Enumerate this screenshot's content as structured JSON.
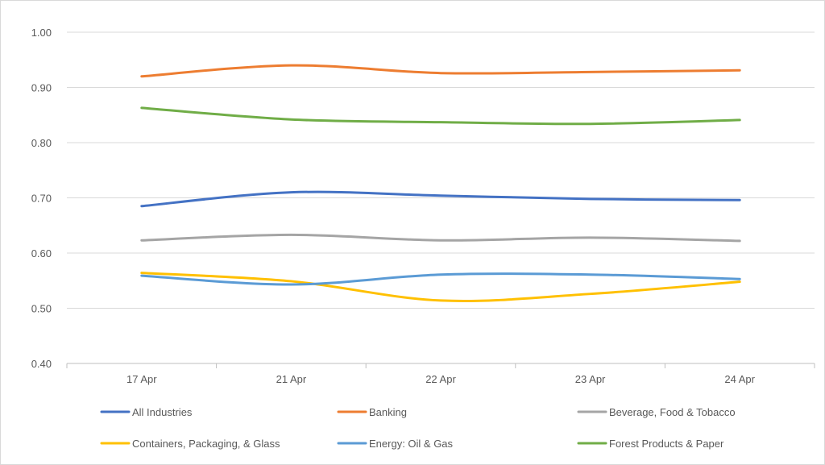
{
  "chart_data": {
    "type": "line",
    "title": "",
    "xlabel": "",
    "ylabel": "",
    "categories": [
      "17 Apr",
      "21 Apr",
      "22 Apr",
      "23 Apr",
      "24 Apr"
    ],
    "ylim": [
      0.4,
      1.0
    ],
    "yticks": [
      "0.40",
      "0.50",
      "0.60",
      "0.70",
      "0.80",
      "0.90",
      "1.00"
    ],
    "grid": true,
    "smooth": true,
    "legend_position": "bottom",
    "series": [
      {
        "name": "All Industries",
        "color": "#4472C4",
        "values": [
          0.685,
          0.71,
          0.704,
          0.698,
          0.696
        ]
      },
      {
        "name": "Banking",
        "color": "#ED7D31",
        "values": [
          0.92,
          0.94,
          0.926,
          0.928,
          0.931
        ]
      },
      {
        "name": "Beverage, Food & Tobacco",
        "color": "#A5A5A5",
        "values": [
          0.623,
          0.633,
          0.623,
          0.628,
          0.622
        ]
      },
      {
        "name": "Containers, Packaging, & Glass",
        "color": "#FFC000",
        "values": [
          0.564,
          0.549,
          0.514,
          0.526,
          0.548
        ]
      },
      {
        "name": "Energy: Oil & Gas",
        "color": "#5B9BD5",
        "values": [
          0.559,
          0.543,
          0.561,
          0.561,
          0.553
        ]
      },
      {
        "name": "Forest Products & Paper",
        "color": "#70AD47",
        "values": [
          0.863,
          0.842,
          0.837,
          0.834,
          0.841
        ]
      }
    ]
  }
}
